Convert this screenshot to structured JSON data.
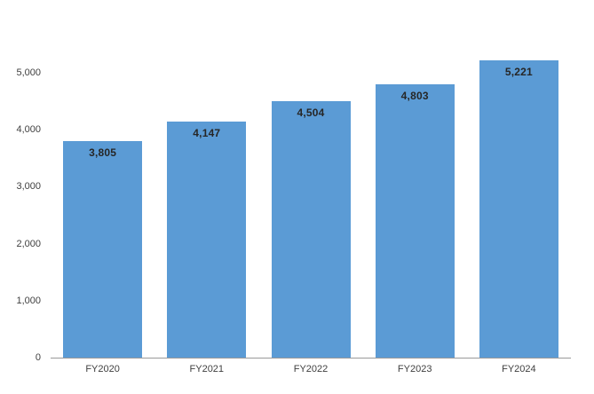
{
  "chart_data": {
    "type": "bar",
    "title": "",
    "xlabel": "",
    "ylabel": "",
    "categories": [
      "FY2020",
      "FY2021",
      "FY2022",
      "FY2023",
      "FY2024"
    ],
    "values": [
      3805,
      4147,
      4504,
      4803,
      5221
    ],
    "data_labels": [
      "3,805",
      "4,147",
      "4,504",
      "4,803",
      "5,221"
    ],
    "y_ticks": [
      {
        "value": 0,
        "label": "0"
      },
      {
        "value": 1000,
        "label": "1,000"
      },
      {
        "value": 2000,
        "label": "2,000"
      },
      {
        "value": 3000,
        "label": "3,000"
      },
      {
        "value": 4000,
        "label": "4,000"
      },
      {
        "value": 5000,
        "label": "5,000"
      }
    ],
    "ylim": [
      0,
      5500
    ],
    "grid": "off",
    "legend": "none",
    "colors": {
      "bar_fill": "#5B9BD5",
      "data_label_text": "#262626",
      "axis_text": "#404040",
      "axis_line": "#999999",
      "background": "#ffffff"
    }
  }
}
